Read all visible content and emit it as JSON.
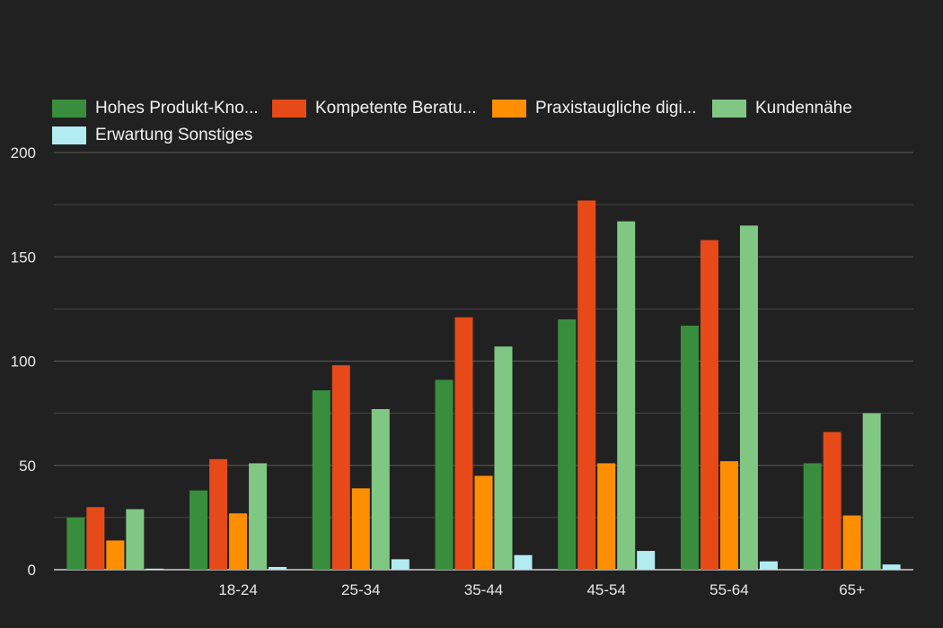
{
  "chart_data": {
    "type": "bar",
    "categories": [
      "",
      "18-24",
      "25-34",
      "35-44",
      "45-54",
      "55-64",
      "65+"
    ],
    "series": [
      {
        "name": "Hohes Produkt-Kno...",
        "color": "#388e3c",
        "values": [
          25,
          38,
          86,
          91,
          120,
          117,
          51
        ]
      },
      {
        "name": "Kompetente Beratu...",
        "color": "#e64a19",
        "values": [
          30,
          53,
          98,
          121,
          177,
          158,
          66
        ]
      },
      {
        "name": "Praxistaugliche digi...",
        "color": "#ff8f00",
        "values": [
          14,
          27,
          39,
          45,
          51,
          52,
          26
        ]
      },
      {
        "name": "Kundennähe",
        "color": "#81c784",
        "values": [
          29,
          51,
          77,
          107,
          167,
          165,
          75
        ]
      },
      {
        "name": "Erwartung Sonstiges",
        "color": "#b2ebf2",
        "values": [
          0.5,
          1.3,
          5,
          7,
          9,
          4,
          2.5
        ]
      }
    ],
    "y_ticks": [
      "0",
      "50",
      "100",
      "150",
      "200"
    ],
    "ylim": [
      0,
      200
    ],
    "grid": true,
    "legend_position": "top"
  }
}
